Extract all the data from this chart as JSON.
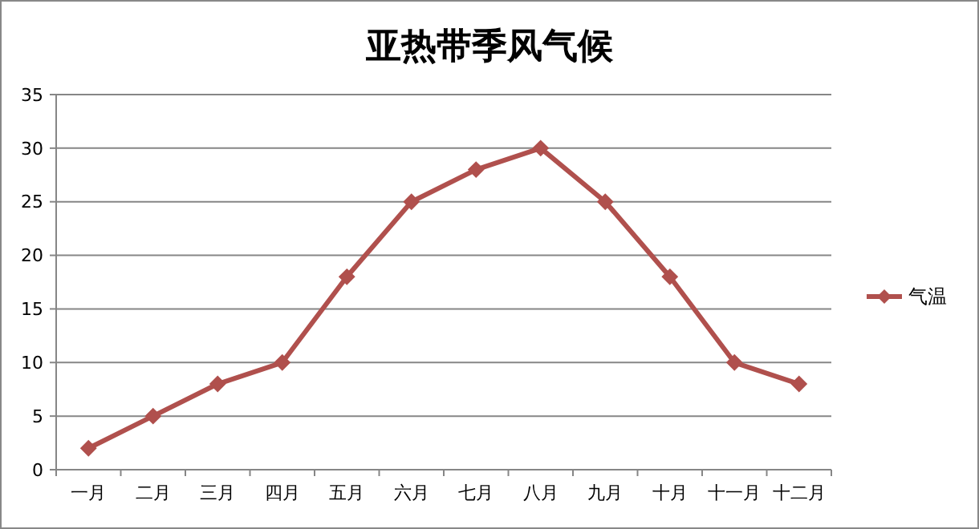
{
  "chart_data": {
    "type": "line",
    "title": "亚热带季风气候",
    "categories": [
      "一月",
      "二月",
      "三月",
      "四月",
      "五月",
      "六月",
      "七月",
      "八月",
      "九月",
      "十月",
      "十一月",
      "十二月"
    ],
    "series": [
      {
        "name": "气温",
        "color": "#b0504d",
        "values": [
          2,
          5,
          8,
          10,
          18,
          25,
          28,
          30,
          25,
          18,
          10,
          8
        ]
      }
    ],
    "ylim": [
      0,
      35
    ],
    "yticks": [
      0,
      5,
      10,
      15,
      20,
      25,
      30,
      35
    ],
    "grid": "y",
    "legend": "right",
    "marker": "diamond",
    "line_style": "solid"
  }
}
